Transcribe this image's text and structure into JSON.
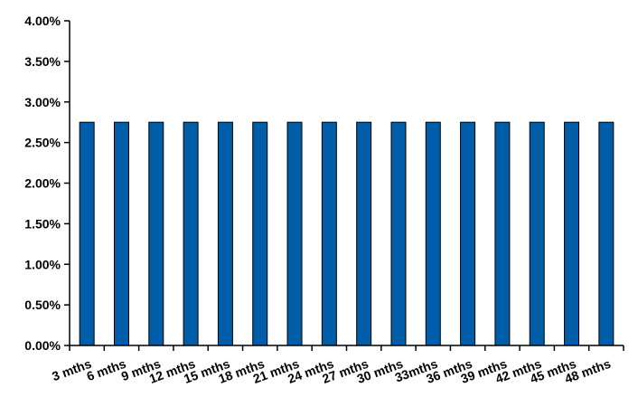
{
  "chart_data": {
    "type": "bar",
    "categories": [
      "3 mths",
      "6 mths",
      "9 mths",
      "12 mths",
      "15 mths",
      "18 mths",
      "21 mths",
      "24 mths",
      "27 mths",
      "30 mths",
      "33mths",
      "36 mths",
      "39 mths",
      "42 mths",
      "45 mths",
      "48 mths"
    ],
    "values": [
      2.75,
      2.75,
      2.75,
      2.75,
      2.75,
      2.75,
      2.75,
      2.75,
      2.75,
      2.75,
      2.75,
      2.75,
      2.75,
      2.75,
      2.75,
      2.75
    ],
    "y_tick_labels": [
      "0.00%",
      "0.50%",
      "1.00%",
      "1.50%",
      "2.00%",
      "2.50%",
      "3.00%",
      "3.50%",
      "4.00%"
    ],
    "ylim": [
      0,
      4
    ],
    "grid": false,
    "legend": "none",
    "bar_color": "#005DA8",
    "bar_outline_color": "#000000"
  }
}
